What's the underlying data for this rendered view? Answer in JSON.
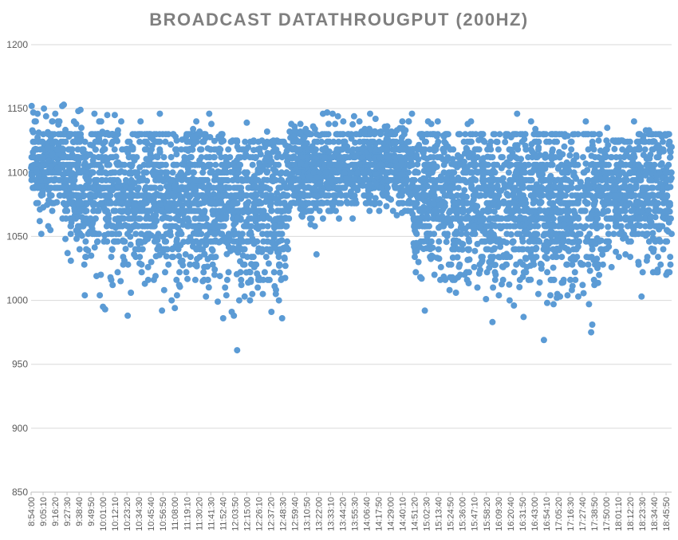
{
  "chart_data": {
    "type": "scatter",
    "title": "BROADCAST DATATHROUGPUT (200HZ)",
    "xlabel": "",
    "ylabel": "",
    "ylim": [
      850,
      1200
    ],
    "yticks": [
      850,
      900,
      950,
      1000,
      1050,
      1100,
      1150,
      1200
    ],
    "grid": true,
    "legend": "none",
    "marker_color": "#5b9bd5",
    "x_tick_labels": [
      "8:54:00",
      "9:05:10",
      "9:16:20",
      "9:27:30",
      "9:38:40",
      "9:49:50",
      "10:01:00",
      "10:12:10",
      "10:23:20",
      "10:34:30",
      "10:45:40",
      "10:56:50",
      "11:08:00",
      "11:19:10",
      "11:30:20",
      "11:41:30",
      "11:52:40",
      "12:03:50",
      "12:15:00",
      "12:26:10",
      "12:37:20",
      "12:48:30",
      "12:59:40",
      "13:10:50",
      "13:22:00",
      "13:33:10",
      "13:44:20",
      "13:55:30",
      "14:06:40",
      "14:17:50",
      "14:29:00",
      "14:40:10",
      "14:51:20",
      "15:02:30",
      "15:13:40",
      "15:24:50",
      "15:36:00",
      "15:47:10",
      "15:58:20",
      "16:09:30",
      "16:20:40",
      "16:31:50",
      "16:43:00",
      "16:54:10",
      "17:05:20",
      "17:16:30",
      "17:27:40",
      "17:38:50",
      "17:50:00",
      "18:01:10",
      "18:12:20",
      "18:23:30",
      "18:34:40",
      "18:45:50"
    ],
    "x_start": "8:54:00",
    "x_end": "18:51:00",
    "series": [
      {
        "name": "",
        "points": [
          [
            "8:54:30",
            1152
          ],
          [
            "8:56:00",
            1147
          ],
          [
            "9:00:00",
            1146
          ],
          [
            "9:02:00",
            1062
          ],
          [
            "9:03:30",
            1052
          ],
          [
            "9:06:00",
            1150
          ],
          [
            "9:08:00",
            1144
          ],
          [
            "9:10:00",
            1058
          ],
          [
            "9:12:00",
            1055
          ],
          [
            "9:14:00",
            1140
          ],
          [
            "9:16:30",
            1146
          ],
          [
            "9:19:00",
            1140
          ],
          [
            "9:23:00",
            1152
          ],
          [
            "9:24:30",
            1153
          ],
          [
            "9:26:00",
            1048
          ],
          [
            "9:28:00",
            1037
          ],
          [
            "9:31:00",
            1031
          ],
          [
            "9:34:00",
            1140
          ],
          [
            "9:36:00",
            1138
          ],
          [
            "9:38:00",
            1148
          ],
          [
            "9:40:00",
            1149
          ],
          [
            "9:44:00",
            1004
          ],
          [
            "9:47:00",
            1039
          ],
          [
            "9:50:00",
            1035
          ],
          [
            "9:53:00",
            1146
          ],
          [
            "9:55:00",
            1019
          ],
          [
            "9:58:00",
            1004
          ],
          [
            "9:59:00",
            1020
          ],
          [
            "10:01:00",
            995
          ],
          [
            "10:03:00",
            993
          ],
          [
            "10:05:00",
            1145
          ],
          [
            "10:08:00",
            1018
          ],
          [
            "10:10:00",
            1012
          ],
          [
            "10:12:00",
            1145
          ],
          [
            "10:15:00",
            1133
          ],
          [
            "10:18:00",
            1140
          ],
          [
            "10:21:00",
            1031
          ],
          [
            "10:24:00",
            988
          ],
          [
            "10:27:00",
            1006
          ],
          [
            "10:30:00",
            1036
          ],
          [
            "10:33:00",
            1129
          ],
          [
            "10:36:00",
            1140
          ],
          [
            "10:40:00",
            1013
          ],
          [
            "10:43:00",
            1026
          ],
          [
            "10:46:00",
            1030
          ],
          [
            "10:50:00",
            1019
          ],
          [
            "10:54:00",
            1146
          ],
          [
            "10:56:00",
            992
          ],
          [
            "10:58:00",
            1008
          ],
          [
            "11:02:00",
            1028
          ],
          [
            "11:05:00",
            1000
          ],
          [
            "11:08:00",
            994
          ],
          [
            "11:10:00",
            1004
          ],
          [
            "11:12:00",
            1012
          ],
          [
            "11:15:00",
            1031
          ],
          [
            "11:18:00",
            1036
          ],
          [
            "11:22:00",
            1028
          ],
          [
            "11:25:00",
            1134
          ],
          [
            "11:28:00",
            1140
          ],
          [
            "11:31:00",
            1132
          ],
          [
            "11:34:00",
            1015
          ],
          [
            "11:37:00",
            1003
          ],
          [
            "11:40:00",
            1146
          ],
          [
            "11:42:00",
            1138
          ],
          [
            "11:45:00",
            1020
          ],
          [
            "11:48:00",
            999
          ],
          [
            "11:50:00",
            1019
          ],
          [
            "11:53:00",
            986
          ],
          [
            "11:56:00",
            1004
          ],
          [
            "11:58:00",
            1022
          ],
          [
            "12:01:00",
            991
          ],
          [
            "12:03:00",
            988
          ],
          [
            "12:06:00",
            961
          ],
          [
            "12:08:00",
            1000
          ],
          [
            "12:10:00",
            1012
          ],
          [
            "12:13:00",
            1003
          ],
          [
            "12:15:00",
            1139
          ],
          [
            "12:18:00",
            1000
          ],
          [
            "12:22:00",
            1026
          ],
          [
            "12:26:00",
            1018
          ],
          [
            "12:30:00",
            1005
          ],
          [
            "12:34:00",
            1132
          ],
          [
            "12:38:00",
            991
          ],
          [
            "12:41:00",
            1011
          ],
          [
            "12:45:00",
            1000
          ],
          [
            "12:48:00",
            986
          ],
          [
            "12:51:00",
            1027
          ],
          [
            "12:55:00",
            1132
          ],
          [
            "13:00:00",
            1133
          ],
          [
            "13:05:00",
            1132
          ],
          [
            "13:10:00",
            1134
          ],
          [
            "13:15:00",
            1130
          ],
          [
            "13:20:00",
            1036
          ],
          [
            "13:26:00",
            1146
          ],
          [
            "13:30:00",
            1147
          ],
          [
            "13:35:00",
            1146
          ],
          [
            "13:40:00",
            1144
          ],
          [
            "13:45:00",
            1140
          ],
          [
            "13:50:00",
            1130
          ],
          [
            "13:55:00",
            1144
          ],
          [
            "14:00:00",
            1140
          ],
          [
            "14:05:00",
            1134
          ],
          [
            "14:10:00",
            1146
          ],
          [
            "14:15:00",
            1142
          ],
          [
            "14:20:00",
            1132
          ],
          [
            "14:25:00",
            1133
          ],
          [
            "14:30:00",
            1132
          ],
          [
            "14:35:00",
            1133
          ],
          [
            "14:40:00",
            1140
          ],
          [
            "14:43:00",
            1133
          ],
          [
            "14:46:00",
            1140
          ],
          [
            "14:49:00",
            1146
          ],
          [
            "14:52:00",
            1038
          ],
          [
            "14:55:00",
            1030
          ],
          [
            "14:58:00",
            1017
          ],
          [
            "15:01:00",
            992
          ],
          [
            "15:04:00",
            1140
          ],
          [
            "15:07:00",
            1138
          ],
          [
            "15:10:00",
            1020
          ],
          [
            "15:13:00",
            1140
          ],
          [
            "15:16:00",
            1026
          ],
          [
            "15:20:00",
            1016
          ],
          [
            "15:24:00",
            1008
          ],
          [
            "15:27:00",
            1016
          ],
          [
            "15:30:00",
            1006
          ],
          [
            "15:34:00",
            1020
          ],
          [
            "15:38:00",
            1020
          ],
          [
            "15:41:00",
            1138
          ],
          [
            "15:44:00",
            1140
          ],
          [
            "15:47:00",
            1026
          ],
          [
            "15:50:00",
            1010
          ],
          [
            "15:54:00",
            1030
          ],
          [
            "15:58:00",
            1001
          ],
          [
            "16:01:00",
            1030
          ],
          [
            "16:04:00",
            983
          ],
          [
            "16:07:00",
            1020
          ],
          [
            "16:10:00",
            1004
          ],
          [
            "16:14:00",
            1026
          ],
          [
            "16:17:00",
            1036
          ],
          [
            "16:20:00",
            1000
          ],
          [
            "16:24:00",
            996
          ],
          [
            "16:27:00",
            1146
          ],
          [
            "16:30:00",
            1030
          ],
          [
            "16:33:00",
            987
          ],
          [
            "16:36:00",
            1026
          ],
          [
            "16:40:00",
            1140
          ],
          [
            "16:44:00",
            1134
          ],
          [
            "16:48:00",
            1014
          ],
          [
            "16:52:00",
            969
          ],
          [
            "16:55:00",
            998
          ],
          [
            "16:58:00",
            1004
          ],
          [
            "17:01:00",
            997
          ],
          [
            "17:04:00",
            1002
          ],
          [
            "17:07:00",
            1003
          ],
          [
            "17:10:00",
            1014
          ],
          [
            "17:14:00",
            1004
          ],
          [
            "17:18:00",
            1008
          ],
          [
            "17:21:00",
            1032
          ],
          [
            "17:24:00",
            1003
          ],
          [
            "17:28:00",
            1012
          ],
          [
            "17:31:00",
            1140
          ],
          [
            "17:34:00",
            997
          ],
          [
            "17:36:00",
            975
          ],
          [
            "17:37:00",
            981
          ],
          [
            "17:39:00",
            1012
          ],
          [
            "17:43:00",
            1125
          ],
          [
            "17:47:00",
            1028
          ],
          [
            "17:51:00",
            1135
          ],
          [
            "17:55:00",
            1026
          ],
          [
            "17:59:00",
            1038
          ],
          [
            "18:03:00",
            1112
          ],
          [
            "18:08:00",
            1036
          ],
          [
            "18:12:00",
            1106
          ],
          [
            "18:16:00",
            1140
          ],
          [
            "18:20:00",
            1030
          ],
          [
            "18:23:00",
            1003
          ],
          [
            "18:27:00",
            1133
          ],
          [
            "18:30:00",
            1133
          ],
          [
            "18:34:00",
            1038
          ],
          [
            "18:38:00",
            1024
          ],
          [
            "18:42:00",
            1128
          ],
          [
            "18:46:00",
            1020
          ],
          [
            "18:49:00",
            1022
          ],
          [
            "18:50:00",
            1116
          ],
          [
            "18:51:00",
            1120
          ]
        ],
        "bands": [
          {
            "from": "8:54:00",
            "to": "9:30:00",
            "min": 1055,
            "max": 1140,
            "center": 1105,
            "spread": 17
          },
          {
            "from": "9:30:00",
            "to": "10:05:00",
            "min": 1030,
            "max": 1140,
            "center": 1092,
            "spread": 26
          },
          {
            "from": "10:05:00",
            "to": "11:00:00",
            "min": 1015,
            "max": 1130,
            "center": 1082,
            "spread": 28
          },
          {
            "from": "11:00:00",
            "to": "12:00:00",
            "min": 1010,
            "max": 1128,
            "center": 1080,
            "spread": 30
          },
          {
            "from": "12:00:00",
            "to": "12:55:00",
            "min": 1005,
            "max": 1125,
            "center": 1075,
            "spread": 30
          },
          {
            "from": "12:55:00",
            "to": "13:55:00",
            "min": 1050,
            "max": 1138,
            "center": 1102,
            "spread": 17
          },
          {
            "from": "13:55:00",
            "to": "14:50:00",
            "min": 1055,
            "max": 1140,
            "center": 1105,
            "spread": 16
          },
          {
            "from": "14:50:00",
            "to": "15:40:00",
            "min": 1018,
            "max": 1130,
            "center": 1080,
            "spread": 28
          },
          {
            "from": "15:40:00",
            "to": "16:40:00",
            "min": 1010,
            "max": 1130,
            "center": 1078,
            "spread": 30
          },
          {
            "from": "16:40:00",
            "to": "17:45:00",
            "min": 1005,
            "max": 1130,
            "center": 1075,
            "spread": 30
          },
          {
            "from": "17:45:00",
            "to": "18:20:00",
            "min": 1035,
            "max": 1125,
            "center": 1090,
            "spread": 22
          },
          {
            "from": "18:20:00",
            "to": "18:51:00",
            "min": 1020,
            "max": 1130,
            "center": 1085,
            "spread": 26
          }
        ]
      }
    ]
  }
}
